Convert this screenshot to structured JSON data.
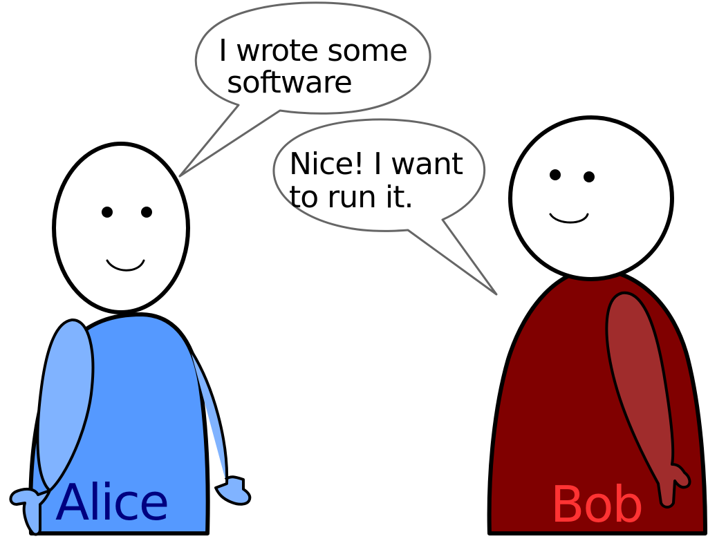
{
  "bubbles": {
    "alice_line1": "I wrote some",
    "alice_line2": "software",
    "bob_line1": "Nice! I want",
    "bob_line2": "to run it."
  },
  "characters": {
    "alice": {
      "name": "Alice",
      "body_color": "#5599ff",
      "arm_color": "#80b3ff",
      "name_color": "#000080"
    },
    "bob": {
      "name": "Bob",
      "body_color": "#800000",
      "arm_color": "#a02c2c",
      "name_color": "#ff3333"
    }
  },
  "colors": {
    "outline": "#000000",
    "bubble_outline": "#666666",
    "face": "#ffffff"
  }
}
